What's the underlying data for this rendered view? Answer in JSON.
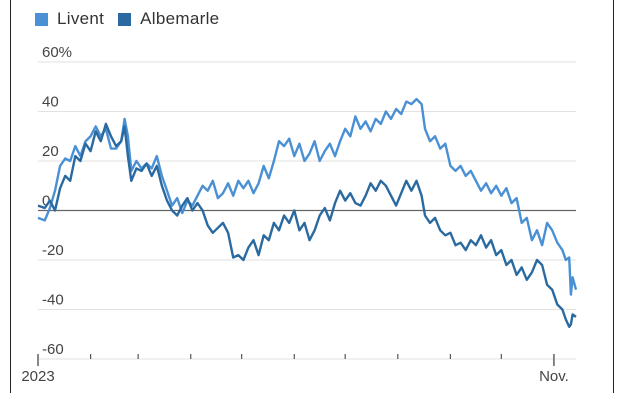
{
  "colors": {
    "Livent": "#4a90d4",
    "Albemarle": "#2a6aa0",
    "zero_line": "#666666",
    "grid": "#e2e2e2",
    "text": "#444444"
  },
  "chart_data": {
    "type": "line",
    "title": "",
    "xlabel": "",
    "ylabel": "",
    "ylim": [
      -60,
      60
    ],
    "y_ticks": [
      60,
      40,
      20,
      0,
      -20,
      -40,
      -60
    ],
    "y_tick_labels": [
      "60%",
      "40",
      "20",
      "0",
      "-20",
      "-40",
      "-60"
    ],
    "x_range": [
      "2023-01-01",
      "2023-11-14"
    ],
    "x_tick_labels": [
      {
        "date": "2023-01-01",
        "label": "2023"
      },
      {
        "date": "2023-11-01",
        "label": "Nov."
      }
    ],
    "legend": "top-left",
    "grid": true,
    "series": [
      {
        "name": "Livent",
        "color": "#4a90d4",
        "points": [
          [
            "2023-01-01",
            -3
          ],
          [
            "2023-01-05",
            -4
          ],
          [
            "2023-01-08",
            1
          ],
          [
            "2023-01-11",
            8
          ],
          [
            "2023-01-14",
            18
          ],
          [
            "2023-01-17",
            21
          ],
          [
            "2023-01-20",
            20
          ],
          [
            "2023-01-23",
            26
          ],
          [
            "2023-01-26",
            22
          ],
          [
            "2023-01-29",
            28
          ],
          [
            "2023-02-01",
            30
          ],
          [
            "2023-02-04",
            34
          ],
          [
            "2023-02-07",
            30
          ],
          [
            "2023-02-10",
            33
          ],
          [
            "2023-02-13",
            25
          ],
          [
            "2023-02-16",
            25
          ],
          [
            "2023-02-19",
            28
          ],
          [
            "2023-02-21",
            37
          ],
          [
            "2023-02-23",
            30
          ],
          [
            "2023-02-25",
            16
          ],
          [
            "2023-02-28",
            20
          ],
          [
            "2023-03-03",
            17
          ],
          [
            "2023-03-06",
            19
          ],
          [
            "2023-03-09",
            17
          ],
          [
            "2023-03-12",
            22
          ],
          [
            "2023-03-15",
            14
          ],
          [
            "2023-03-18",
            8
          ],
          [
            "2023-03-21",
            2
          ],
          [
            "2023-03-24",
            5
          ],
          [
            "2023-03-27",
            -1
          ],
          [
            "2023-03-30",
            4
          ],
          [
            "2023-04-02",
            2
          ],
          [
            "2023-04-05",
            6
          ],
          [
            "2023-04-08",
            10
          ],
          [
            "2023-04-11",
            8
          ],
          [
            "2023-04-14",
            12
          ],
          [
            "2023-04-17",
            5
          ],
          [
            "2023-04-20",
            7
          ],
          [
            "2023-04-23",
            11
          ],
          [
            "2023-04-26",
            6
          ],
          [
            "2023-04-29",
            12
          ],
          [
            "2023-05-02",
            9
          ],
          [
            "2023-05-05",
            12
          ],
          [
            "2023-05-08",
            7
          ],
          [
            "2023-05-11",
            11
          ],
          [
            "2023-05-14",
            18
          ],
          [
            "2023-05-17",
            13
          ],
          [
            "2023-05-20",
            20
          ],
          [
            "2023-05-23",
            28
          ],
          [
            "2023-05-26",
            26
          ],
          [
            "2023-05-29",
            29
          ],
          [
            "2023-06-01",
            22
          ],
          [
            "2023-06-04",
            27
          ],
          [
            "2023-06-07",
            20
          ],
          [
            "2023-06-10",
            23
          ],
          [
            "2023-06-13",
            28
          ],
          [
            "2023-06-16",
            20
          ],
          [
            "2023-06-19",
            24
          ],
          [
            "2023-06-22",
            27
          ],
          [
            "2023-06-25",
            22
          ],
          [
            "2023-06-28",
            28
          ],
          [
            "2023-07-01",
            33
          ],
          [
            "2023-07-04",
            30
          ],
          [
            "2023-07-07",
            38
          ],
          [
            "2023-07-10",
            33
          ],
          [
            "2023-07-13",
            36
          ],
          [
            "2023-07-16",
            32
          ],
          [
            "2023-07-19",
            37
          ],
          [
            "2023-07-22",
            35
          ],
          [
            "2023-07-25",
            40
          ],
          [
            "2023-07-28",
            37
          ],
          [
            "2023-07-31",
            41
          ],
          [
            "2023-08-03",
            39
          ],
          [
            "2023-08-06",
            44
          ],
          [
            "2023-08-09",
            43
          ],
          [
            "2023-08-12",
            45
          ],
          [
            "2023-08-15",
            43
          ],
          [
            "2023-08-17",
            33
          ],
          [
            "2023-08-20",
            28
          ],
          [
            "2023-08-23",
            30
          ],
          [
            "2023-08-26",
            25
          ],
          [
            "2023-08-29",
            27
          ],
          [
            "2023-09-01",
            18
          ],
          [
            "2023-09-04",
            16
          ],
          [
            "2023-09-07",
            18
          ],
          [
            "2023-09-10",
            14
          ],
          [
            "2023-09-13",
            16
          ],
          [
            "2023-09-16",
            12
          ],
          [
            "2023-09-19",
            8
          ],
          [
            "2023-09-22",
            11
          ],
          [
            "2023-09-25",
            7
          ],
          [
            "2023-09-28",
            10
          ],
          [
            "2023-10-01",
            6
          ],
          [
            "2023-10-04",
            9
          ],
          [
            "2023-10-07",
            3
          ],
          [
            "2023-10-10",
            5
          ],
          [
            "2023-10-13",
            -5
          ],
          [
            "2023-10-16",
            -3
          ],
          [
            "2023-10-19",
            -12
          ],
          [
            "2023-10-22",
            -8
          ],
          [
            "2023-10-25",
            -14
          ],
          [
            "2023-10-28",
            -5
          ],
          [
            "2023-10-31",
            -8
          ],
          [
            "2023-11-03",
            -13
          ],
          [
            "2023-11-06",
            -16
          ],
          [
            "2023-11-08",
            -20
          ],
          [
            "2023-11-10",
            -19
          ],
          [
            "2023-11-11",
            -34
          ],
          [
            "2023-11-12",
            -27
          ],
          [
            "2023-11-14",
            -32
          ]
        ]
      },
      {
        "name": "Albemarle",
        "color": "#2a6aa0",
        "points": [
          [
            "2023-01-01",
            2
          ],
          [
            "2023-01-05",
            1
          ],
          [
            "2023-01-08",
            4
          ],
          [
            "2023-01-11",
            0
          ],
          [
            "2023-01-14",
            9
          ],
          [
            "2023-01-17",
            14
          ],
          [
            "2023-01-20",
            12
          ],
          [
            "2023-01-23",
            22
          ],
          [
            "2023-01-26",
            20
          ],
          [
            "2023-01-29",
            27
          ],
          [
            "2023-02-01",
            24
          ],
          [
            "2023-02-04",
            32
          ],
          [
            "2023-02-07",
            28
          ],
          [
            "2023-02-10",
            35
          ],
          [
            "2023-02-13",
            30
          ],
          [
            "2023-02-16",
            26
          ],
          [
            "2023-02-19",
            28
          ],
          [
            "2023-02-21",
            34
          ],
          [
            "2023-02-23",
            22
          ],
          [
            "2023-02-25",
            12
          ],
          [
            "2023-02-28",
            17
          ],
          [
            "2023-03-03",
            16
          ],
          [
            "2023-03-06",
            19
          ],
          [
            "2023-03-09",
            14
          ],
          [
            "2023-03-12",
            18
          ],
          [
            "2023-03-15",
            10
          ],
          [
            "2023-03-18",
            4
          ],
          [
            "2023-03-21",
            0
          ],
          [
            "2023-03-24",
            -2
          ],
          [
            "2023-03-27",
            2
          ],
          [
            "2023-03-30",
            5
          ],
          [
            "2023-04-02",
            0
          ],
          [
            "2023-04-05",
            3
          ],
          [
            "2023-04-08",
            0
          ],
          [
            "2023-04-11",
            -6
          ],
          [
            "2023-04-14",
            -9
          ],
          [
            "2023-04-17",
            -7
          ],
          [
            "2023-04-20",
            -5
          ],
          [
            "2023-04-23",
            -9
          ],
          [
            "2023-04-26",
            -19
          ],
          [
            "2023-04-29",
            -18
          ],
          [
            "2023-05-02",
            -20
          ],
          [
            "2023-05-05",
            -15
          ],
          [
            "2023-05-08",
            -12
          ],
          [
            "2023-05-11",
            -18
          ],
          [
            "2023-05-14",
            -10
          ],
          [
            "2023-05-17",
            -12
          ],
          [
            "2023-05-20",
            -5
          ],
          [
            "2023-05-23",
            -8
          ],
          [
            "2023-05-26",
            -2
          ],
          [
            "2023-05-29",
            -5
          ],
          [
            "2023-06-01",
            0
          ],
          [
            "2023-06-04",
            -8
          ],
          [
            "2023-06-07",
            -5
          ],
          [
            "2023-06-10",
            -12
          ],
          [
            "2023-06-13",
            -8
          ],
          [
            "2023-06-16",
            -2
          ],
          [
            "2023-06-19",
            1
          ],
          [
            "2023-06-22",
            -4
          ],
          [
            "2023-06-25",
            3
          ],
          [
            "2023-06-28",
            8
          ],
          [
            "2023-07-01",
            4
          ],
          [
            "2023-07-04",
            7
          ],
          [
            "2023-07-07",
            3
          ],
          [
            "2023-07-10",
            2
          ],
          [
            "2023-07-13",
            6
          ],
          [
            "2023-07-16",
            11
          ],
          [
            "2023-07-19",
            8
          ],
          [
            "2023-07-22",
            12
          ],
          [
            "2023-07-25",
            10
          ],
          [
            "2023-07-28",
            6
          ],
          [
            "2023-07-31",
            2
          ],
          [
            "2023-08-03",
            7
          ],
          [
            "2023-08-06",
            12
          ],
          [
            "2023-08-09",
            8
          ],
          [
            "2023-08-12",
            12
          ],
          [
            "2023-08-15",
            6
          ],
          [
            "2023-08-17",
            -2
          ],
          [
            "2023-08-20",
            -5
          ],
          [
            "2023-08-23",
            -3
          ],
          [
            "2023-08-26",
            -8
          ],
          [
            "2023-08-29",
            -10
          ],
          [
            "2023-09-01",
            -9
          ],
          [
            "2023-09-04",
            -14
          ],
          [
            "2023-09-07",
            -13
          ],
          [
            "2023-09-10",
            -16
          ],
          [
            "2023-09-13",
            -12
          ],
          [
            "2023-09-16",
            -14
          ],
          [
            "2023-09-19",
            -10
          ],
          [
            "2023-09-22",
            -15
          ],
          [
            "2023-09-25",
            -12
          ],
          [
            "2023-09-28",
            -18
          ],
          [
            "2023-10-01",
            -16
          ],
          [
            "2023-10-04",
            -22
          ],
          [
            "2023-10-07",
            -20
          ],
          [
            "2023-10-10",
            -26
          ],
          [
            "2023-10-13",
            -23
          ],
          [
            "2023-10-16",
            -28
          ],
          [
            "2023-10-19",
            -25
          ],
          [
            "2023-10-22",
            -20
          ],
          [
            "2023-10-25",
            -22
          ],
          [
            "2023-10-28",
            -30
          ],
          [
            "2023-10-31",
            -32
          ],
          [
            "2023-11-03",
            -38
          ],
          [
            "2023-11-06",
            -40
          ],
          [
            "2023-11-08",
            -44
          ],
          [
            "2023-11-10",
            -47
          ],
          [
            "2023-11-11",
            -46
          ],
          [
            "2023-11-12",
            -42
          ],
          [
            "2023-11-14",
            -43
          ]
        ]
      }
    ]
  }
}
